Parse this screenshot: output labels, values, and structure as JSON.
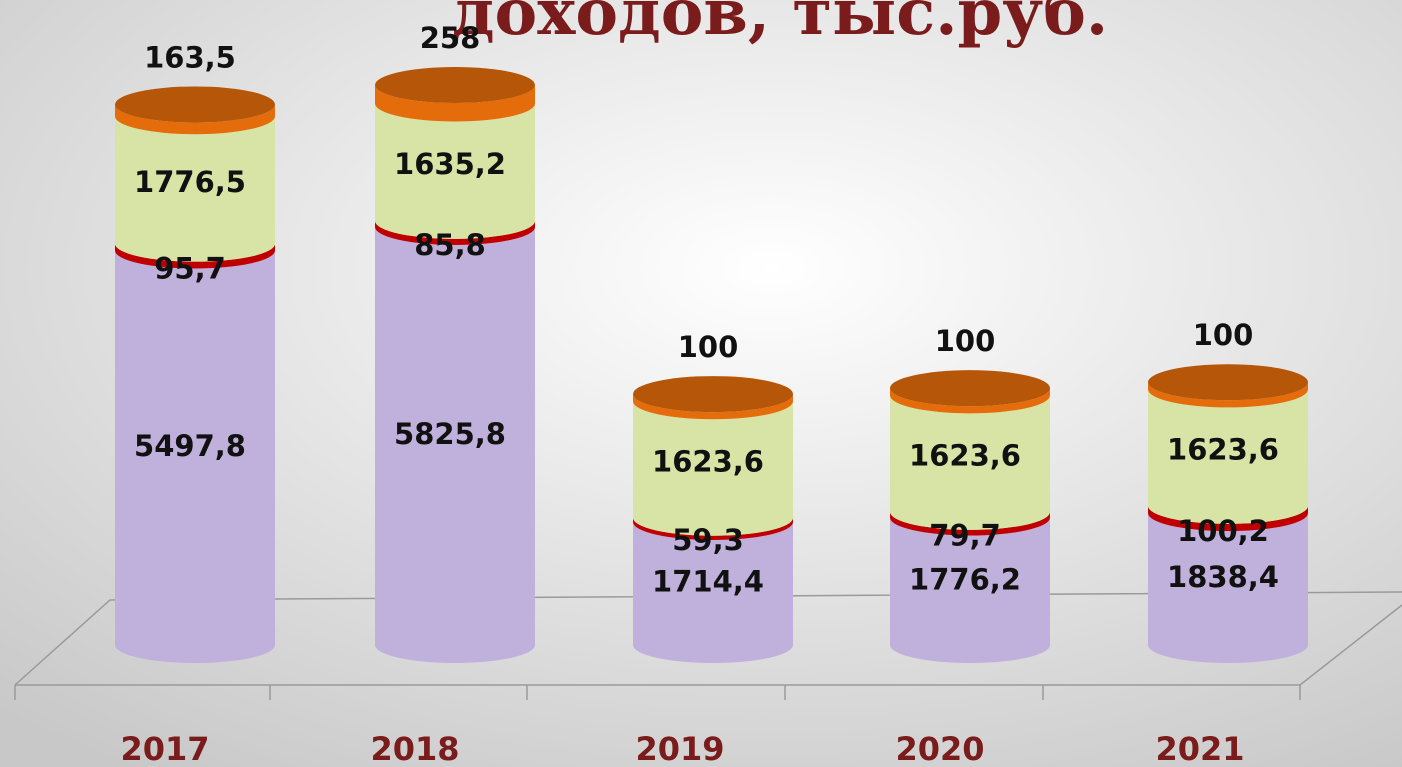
{
  "chart_data": {
    "type": "bar3d-stacked",
    "title": "доходов, тыс.руб.",
    "categories": [
      "2017",
      "2018",
      "2019",
      "2020",
      "2021"
    ],
    "series": [
      {
        "color": "#c0b0dc",
        "values": [
          5497.8,
          5825.8,
          1714.4,
          1776.2,
          1838.4
        ],
        "value_labels": [
          "5497,8",
          "5825,8",
          "1714,4",
          "1776,2",
          "1838,4"
        ]
      },
      {
        "color": "#c00000",
        "values": [
          95.7,
          85.8,
          59.3,
          79.7,
          100.2
        ],
        "value_labels": [
          "95,7",
          "85,8",
          "59,3",
          "79,7",
          "100,2"
        ]
      },
      {
        "color": "#d7e4a6",
        "values": [
          1776.5,
          1635.2,
          1623.6,
          1623.6,
          1623.6
        ],
        "value_labels": [
          "1776,5",
          "1635,2",
          "1623,6",
          "1623,6",
          "1623,6"
        ]
      },
      {
        "color": "#e46c0a",
        "values": [
          163.5,
          258,
          100,
          100,
          100
        ],
        "value_labels": [
          "163,5",
          "258",
          "100",
          "100",
          "100"
        ]
      }
    ]
  }
}
